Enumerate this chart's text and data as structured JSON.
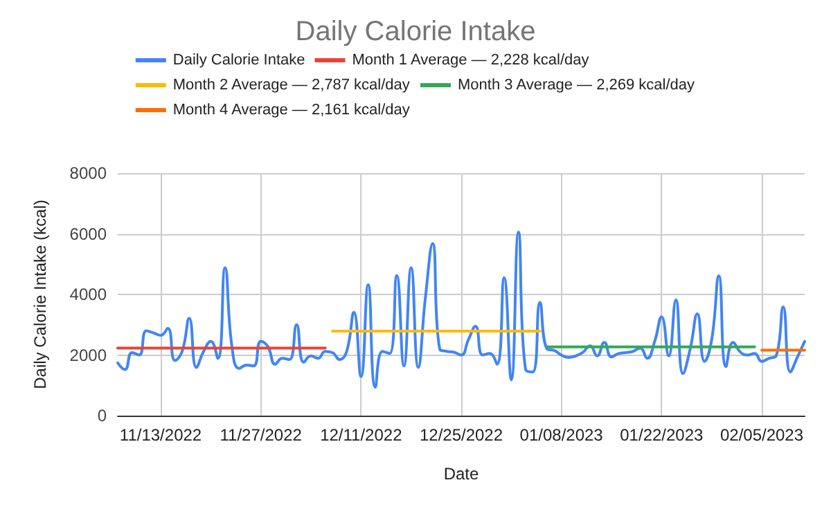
{
  "chart_data": {
    "type": "line",
    "title": "Daily Calorie Intake",
    "xlabel": "Date",
    "ylabel": "Daily Calorie Intake (kcal)",
    "xlim": [
      "2022-11-07",
      "2023-02-11"
    ],
    "xticks": [
      {
        "value": "2022-11-13",
        "label": "11/13/2022"
      },
      {
        "value": "2022-11-27",
        "label": "11/27/2022"
      },
      {
        "value": "2022-12-11",
        "label": "12/11/2022"
      },
      {
        "value": "2022-12-25",
        "label": "12/25/2022"
      },
      {
        "value": "2023-01-08",
        "label": "01/08/2023"
      },
      {
        "value": "2023-01-22",
        "label": "01/22/2023"
      },
      {
        "value": "2023-02-05",
        "label": "02/05/2023"
      }
    ],
    "ylim": [
      0,
      8000
    ],
    "yticks": [
      0,
      2000,
      4000,
      6000,
      8000
    ],
    "grid": true,
    "legend": "top",
    "marker": "none",
    "line_style": "solid",
    "series": [
      {
        "name": "Daily Calorie Intake",
        "color": "#4285f4",
        "x": [
          "2022-11-07",
          "2022-11-08",
          "2022-11-09",
          "2022-11-10",
          "2022-11-11",
          "2022-11-12",
          "2022-11-13",
          "2022-11-14",
          "2022-11-15",
          "2022-11-16",
          "2022-11-17",
          "2022-11-18",
          "2022-11-19",
          "2022-11-20",
          "2022-11-21",
          "2022-11-22",
          "2022-11-23",
          "2022-11-24",
          "2022-11-25",
          "2022-11-26",
          "2022-11-27",
          "2022-11-28",
          "2022-11-29",
          "2022-11-30",
          "2022-12-01",
          "2022-12-02",
          "2022-12-03",
          "2022-12-04",
          "2022-12-05",
          "2022-12-06",
          "2022-12-07",
          "2022-12-08",
          "2022-12-09",
          "2022-12-10",
          "2022-12-11",
          "2022-12-12",
          "2022-12-13",
          "2022-12-14",
          "2022-12-15",
          "2022-12-16",
          "2022-12-17",
          "2022-12-18",
          "2022-12-19",
          "2022-12-20",
          "2022-12-21",
          "2022-12-22",
          "2022-12-23",
          "2022-12-24",
          "2022-12-25",
          "2022-12-26",
          "2022-12-27",
          "2022-12-28",
          "2022-12-29",
          "2022-12-30",
          "2022-12-31",
          "2023-01-01",
          "2023-01-02",
          "2023-01-03",
          "2023-01-04",
          "2023-01-05",
          "2023-01-06",
          "2023-01-07",
          "2023-01-08",
          "2023-01-09",
          "2023-01-10",
          "2023-01-11",
          "2023-01-12",
          "2023-01-13",
          "2023-01-14",
          "2023-01-15",
          "2023-01-16",
          "2023-01-17",
          "2023-01-18",
          "2023-01-19",
          "2023-01-20",
          "2023-01-21",
          "2023-01-22",
          "2023-01-23",
          "2023-01-24",
          "2023-01-25",
          "2023-01-26",
          "2023-01-27",
          "2023-01-28",
          "2023-01-29",
          "2023-01-30",
          "2023-01-31",
          "2023-02-01",
          "2023-02-02",
          "2023-02-03",
          "2023-02-04",
          "2023-02-05",
          "2023-02-06",
          "2023-02-07",
          "2023-02-08",
          "2023-02-09",
          "2023-02-10",
          "2023-02-11"
        ],
        "values": [
          1740,
          1520,
          2080,
          2000,
          2800,
          2730,
          2650,
          2880,
          1820,
          2120,
          3210,
          1590,
          2120,
          2450,
          1890,
          4880,
          2200,
          1560,
          1670,
          1640,
          2450,
          2270,
          1700,
          1890,
          1850,
          3000,
          1760,
          1970,
          1890,
          2120,
          2080,
          1850,
          2120,
          3410,
          1290,
          4320,
          940,
          2120,
          2050,
          4620,
          1640,
          4880,
          1590,
          3900,
          5680,
          2200,
          2120,
          2090,
          2000,
          2500,
          2950,
          2000,
          2050,
          1700,
          4550,
          1180,
          6060,
          1520,
          1440,
          3740,
          2200,
          2150,
          2000,
          1920,
          1970,
          2090,
          2300,
          1970,
          2420,
          1940,
          2050,
          2080,
          2120,
          2230,
          1890,
          2420,
          3260,
          1970,
          3820,
          1390,
          2200,
          3360,
          1790,
          2500,
          4610,
          1620,
          2420,
          2100,
          2000,
          2050,
          1790,
          1890,
          1970,
          3590,
          1440,
          1940,
          2450
        ]
      },
      {
        "name": "Month 1 Average — 2,228 kcal/day",
        "color": "#ea4335",
        "x": [
          "2022-11-07",
          "2022-12-06"
        ],
        "values": [
          2228,
          2228
        ]
      },
      {
        "name": "Month 2 Average — 2,787 kcal/day",
        "color": "#fbbc04",
        "x": [
          "2022-12-07",
          "2023-01-05"
        ],
        "values": [
          2787,
          2787
        ]
      },
      {
        "name": "Month 3 Average — 2,269 kcal/day",
        "color": "#34a853",
        "x": [
          "2023-01-06",
          "2023-02-04"
        ],
        "values": [
          2269,
          2269
        ]
      },
      {
        "name": "Month 4 Average — 2,161 kcal/day",
        "color": "#ff6d01",
        "x": [
          "2023-02-05",
          "2023-02-11"
        ],
        "values": [
          2161,
          2161
        ]
      }
    ]
  }
}
